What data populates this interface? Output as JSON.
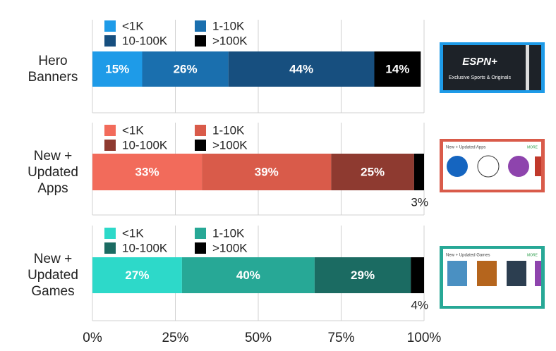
{
  "chart_data": [
    {
      "type": "bar",
      "category": "Hero Banners",
      "series": [
        {
          "name": "<1K",
          "color": "#1e9be8",
          "values": [
            15
          ],
          "value_labels": [
            "15%"
          ]
        },
        {
          "name": "1-10K",
          "color": "#1a6fae",
          "values": [
            26
          ],
          "value_labels": [
            "26%"
          ]
        },
        {
          "name": "10-100K",
          "color": "#174f7f",
          "values": [
            44
          ],
          "value_labels": [
            "44%"
          ]
        },
        {
          "name": ">100K",
          "color": "#000000",
          "values": [
            14
          ],
          "value_labels": [
            "14%"
          ]
        }
      ]
    },
    {
      "type": "bar",
      "category": "New + Updated Apps",
      "series": [
        {
          "name": "<1K",
          "color": "#f26b5b",
          "values": [
            33
          ],
          "value_labels": [
            "33%"
          ]
        },
        {
          "name": "1-10K",
          "color": "#d95b4a",
          "values": [
            39
          ],
          "value_labels": [
            "39%"
          ]
        },
        {
          "name": "10-100K",
          "color": "#8e3a30",
          "values": [
            25
          ],
          "value_labels": [
            "25%"
          ]
        },
        {
          "name": ">100K",
          "color": "#000000",
          "values": [
            3
          ],
          "value_labels": [
            "3%"
          ]
        }
      ]
    },
    {
      "type": "bar",
      "category": "New + Updated Games",
      "series": [
        {
          "name": "<1K",
          "color": "#2dd9c9",
          "values": [
            27
          ],
          "value_labels": [
            "27%"
          ]
        },
        {
          "name": "1-10K",
          "color": "#27a896",
          "values": [
            40
          ],
          "value_labels": [
            "40%"
          ]
        },
        {
          "name": "10-100K",
          "color": "#1b6b62",
          "values": [
            29
          ],
          "value_labels": [
            "29%"
          ]
        },
        {
          "name": ">100K",
          "color": "#000000",
          "values": [
            4
          ],
          "value_labels": [
            "4%"
          ]
        }
      ],
      "xlim": [
        0,
        100
      ],
      "xticks": [
        {
          "value": 0,
          "label": "0%"
        },
        {
          "value": 25,
          "label": "25%"
        },
        {
          "value": 50,
          "label": "50%"
        },
        {
          "value": 75,
          "label": "75%"
        },
        {
          "value": 100,
          "label": "100%"
        }
      ],
      "grid": true
    }
  ],
  "thumbnails": [
    {
      "title": "ESPN+",
      "subtitle": "Exclusive Sports & Originals"
    },
    {
      "title": "New + Updated Apps",
      "subtitle": "MORE"
    },
    {
      "title": "New + Updated Games",
      "subtitle": "MORE"
    }
  ]
}
